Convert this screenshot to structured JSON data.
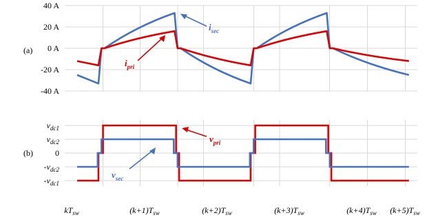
{
  "chart_data": [
    {
      "type": "line",
      "panel_label": "(a)",
      "y_ticks": [
        "40 A",
        "20 A",
        "0 A",
        "-20 A",
        "-40 A"
      ],
      "ylim": [
        -40,
        40
      ],
      "x_period_labels": [
        "kT",
        "(k+1)T",
        "(k+2)T",
        "(k+3)T",
        "(k+4)T",
        "(k+5)T"
      ],
      "x_sub": "sw",
      "grid": true,
      "series": [
        {
          "name": "i_sec",
          "label_main": "i",
          "label_sub": "sec",
          "color": "#4472c4",
          "x": [
            0,
            0.28,
            0.32,
            0.36,
            1.28,
            1.32,
            1.36,
            2.28,
            2.32,
            2.36,
            3.28,
            3.32,
            3.36,
            4.36
          ],
          "y": [
            -25,
            -33,
            0,
            0,
            33,
            0,
            0,
            -33,
            0,
            0,
            33,
            0,
            0,
            -25
          ]
        },
        {
          "name": "i_pri",
          "label_main": "i",
          "label_sub": "pri",
          "color": "#e00000",
          "x": [
            0,
            0.28,
            0.32,
            0.36,
            1.28,
            1.32,
            1.36,
            2.28,
            2.32,
            2.36,
            3.28,
            3.32,
            3.36,
            4.36
          ],
          "y": [
            -12,
            -16,
            0,
            0,
            16,
            0,
            0,
            -16,
            0,
            0,
            16,
            0,
            0,
            -12
          ]
        }
      ]
    },
    {
      "type": "line",
      "panel_label": "(b)",
      "y_ticks": [
        {
          "main": "v",
          "sub": "dc1",
          "prefix": "",
          "value": 2
        },
        {
          "main": "v",
          "sub": "dc2",
          "prefix": "",
          "value": 1
        },
        {
          "main": "0",
          "sub": "",
          "prefix": "",
          "value": 0
        },
        {
          "main": "v",
          "sub": "dc2",
          "prefix": "-",
          "value": -1
        },
        {
          "main": "v",
          "sub": "dc1",
          "prefix": "-",
          "value": -2
        }
      ],
      "ylim": [
        -2.4,
        2.4
      ],
      "grid": true,
      "series": [
        {
          "name": "v_pri",
          "label_main": "v",
          "label_sub": "pri",
          "color": "#e00000",
          "x": [
            0,
            0.28,
            0.28,
            0.3,
            0.3,
            0.34,
            0.34,
            1.3,
            1.3,
            1.34,
            1.34,
            2.28,
            2.28,
            2.3,
            2.3,
            2.34,
            2.34,
            3.3,
            3.3,
            3.34,
            3.34,
            4.36
          ],
          "y": [
            -2,
            -2,
            0,
            0,
            0,
            0,
            2,
            2,
            0,
            0,
            -2,
            -2,
            0,
            0,
            0,
            0,
            2,
            2,
            0,
            0,
            -2,
            -2
          ]
        },
        {
          "name": "v_sec",
          "label_main": "v",
          "label_sub": "sec",
          "color": "#4472c4",
          "x": [
            0,
            0.27,
            0.27,
            0.32,
            0.32,
            1.27,
            1.27,
            1.32,
            1.32,
            2.27,
            2.27,
            2.32,
            2.32,
            3.27,
            3.27,
            3.32,
            3.32,
            4.36
          ],
          "y": [
            -1,
            -1,
            0,
            0,
            1,
            1,
            0,
            0,
            -1,
            -1,
            0,
            0,
            1,
            1,
            0,
            0,
            -1,
            -1
          ]
        }
      ]
    }
  ]
}
